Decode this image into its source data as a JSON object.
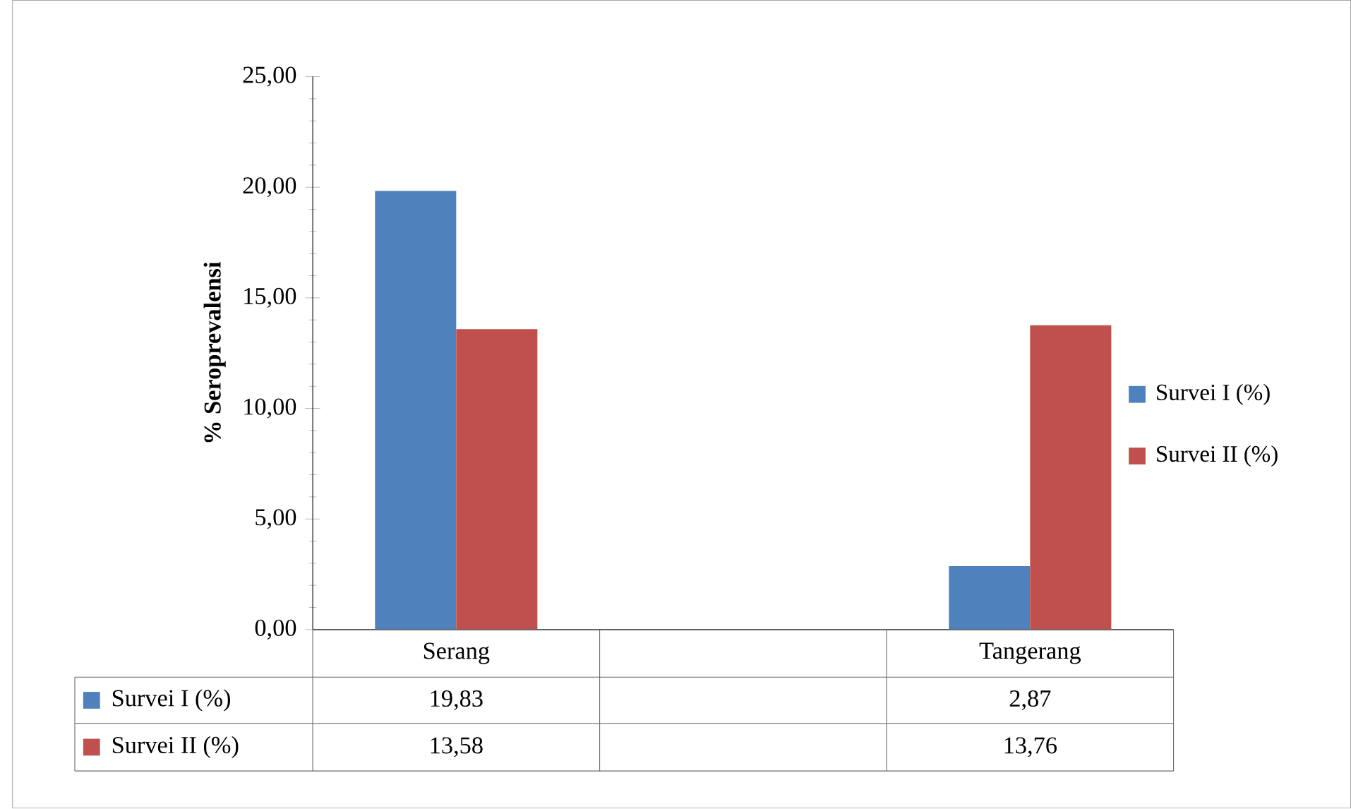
{
  "chart_data": {
    "type": "bar",
    "ylabel": "% Seroprevalensi",
    "categories": [
      "Serang",
      null,
      "Tangerang"
    ],
    "series": [
      {
        "name": "Survei I (%)",
        "color": "#4f81bd",
        "values": [
          19.83,
          null,
          2.87
        ],
        "value_labels": [
          "19,83",
          null,
          "2,87"
        ]
      },
      {
        "name": "Survei II (%)",
        "color": "#c0504d",
        "values": [
          13.58,
          null,
          13.76
        ],
        "value_labels": [
          "13,58",
          null,
          "13,76"
        ]
      }
    ],
    "ylim": [
      0,
      25
    ],
    "yticks": [
      {
        "value": 0,
        "label": "0,00"
      },
      {
        "value": 5,
        "label": "5,00"
      },
      {
        "value": 10,
        "label": "10,00"
      },
      {
        "value": 15,
        "label": "15,00"
      },
      {
        "value": 20,
        "label": "20,00"
      },
      {
        "value": 25,
        "label": "25,00"
      }
    ],
    "legend": "right"
  }
}
